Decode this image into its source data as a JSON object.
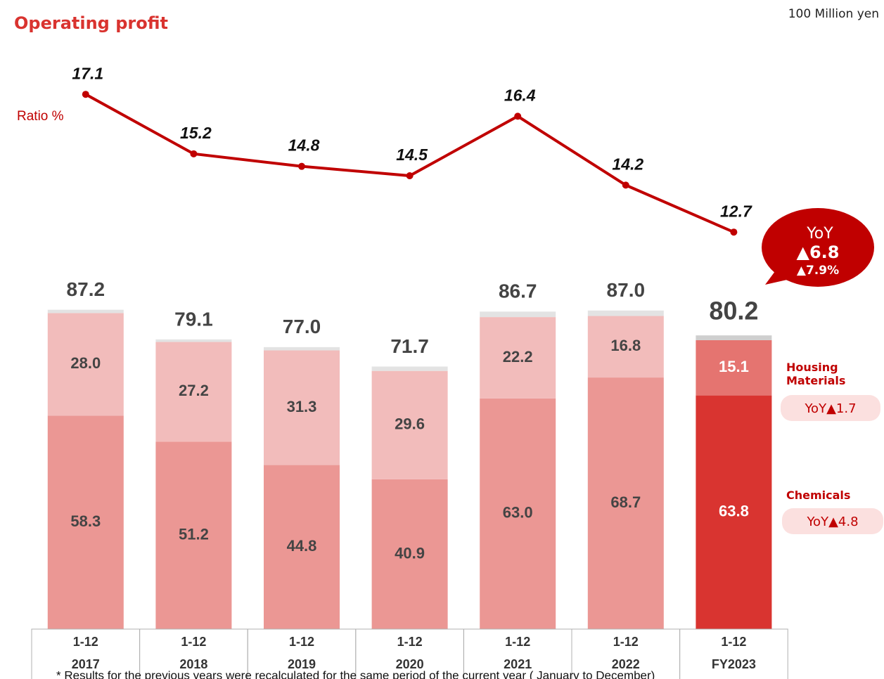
{
  "chart_data": {
    "type": "stacked_bar_line",
    "title": "Operating profit",
    "unit_label": "100 Million yen",
    "categories": [
      "2017",
      "2018",
      "2019",
      "2020",
      "2021",
      "2022",
      "FY2023"
    ],
    "period_labels": [
      "1-12",
      "1-12",
      "1-12",
      "1-12",
      "1-12",
      "1-12",
      "1-12"
    ],
    "highlight_index": 6,
    "series": [
      {
        "name": "Chemicals",
        "color": "#eb9794",
        "highlight_color": "#d93430",
        "values": [
          58.3,
          51.2,
          44.8,
          40.9,
          63.0,
          68.7,
          63.8
        ],
        "value_labels": [
          "58.3",
          "51.2",
          "44.8",
          "40.9",
          "63.0",
          "68.7",
          "63.8"
        ],
        "yoy_label": "YoY▲4.8"
      },
      {
        "name": "Housing Materials",
        "color": "#f2bcbb",
        "highlight_color": "#e57470",
        "values": [
          28.0,
          27.2,
          31.3,
          29.6,
          22.2,
          16.8,
          15.1
        ],
        "value_labels": [
          "28.0",
          "27.2",
          "31.3",
          "29.6",
          "22.2",
          "16.8",
          "15.1"
        ],
        "yoy_label": "YoY▲1.7"
      },
      {
        "color": "#e3e3e3",
        "highlight_color": "#cfcfcf",
        "values": [
          0.9,
          0.7,
          0.9,
          1.2,
          1.5,
          1.5,
          1.3
        ]
      }
    ],
    "totals": [
      87.2,
      79.1,
      77.0,
      71.7,
      86.7,
      87.0,
      80.2
    ],
    "total_labels": [
      "87.2",
      "79.1",
      "77.0",
      "71.7",
      "86.7",
      "87.0",
      "80.2"
    ],
    "ratio": {
      "name": "Ratio %",
      "color": "#c00000",
      "values": [
        17.1,
        15.2,
        14.8,
        14.5,
        16.4,
        14.2,
        12.7
      ]
    },
    "yoy_callout": {
      "title": "YoY",
      "value": "▲6.8",
      "percent": "▲7.9%"
    },
    "footnote": "* Results for the previous years were recalculated for the same period of the current year ( January to December)"
  }
}
